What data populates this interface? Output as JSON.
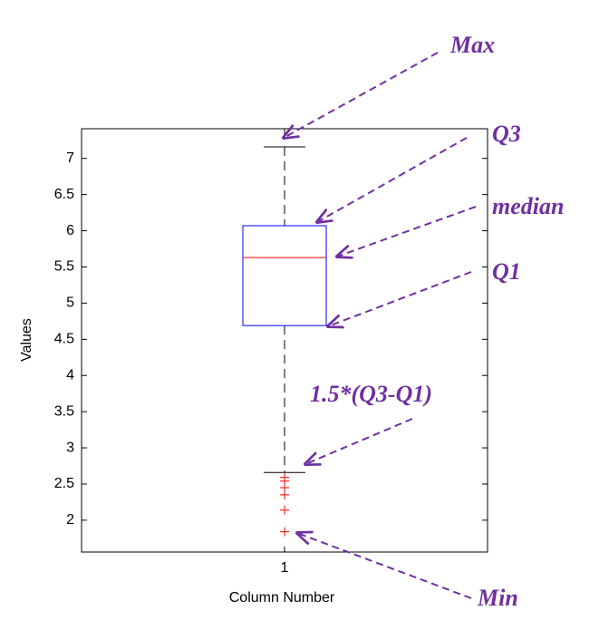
{
  "chart_data": {
    "type": "box",
    "x_label": "Column Number",
    "y_label": "Values",
    "categories": [
      "1"
    ],
    "boxes": [
      {
        "whisker_low": 2.66,
        "q1": 4.69,
        "median": 5.63,
        "q3": 6.07,
        "whisker_high": 7.16,
        "outliers": [
          2.59,
          2.54,
          2.45,
          2.35,
          2.14,
          1.84
        ]
      }
    ],
    "box_color": "#0000ff",
    "median_color": "#ff0000",
    "outlier_color": "#ff0000",
    "whisker_color": "#000000",
    "ylim": [
      1.56,
      7.41
    ],
    "yticks": [
      2,
      2.5,
      3,
      3.5,
      4,
      4.5,
      5,
      5.5,
      6,
      6.5,
      7
    ],
    "annotations": [
      "Max",
      "Q3",
      "median",
      "Q1",
      "1.5*(Q3-Q1)",
      "Min"
    ]
  }
}
